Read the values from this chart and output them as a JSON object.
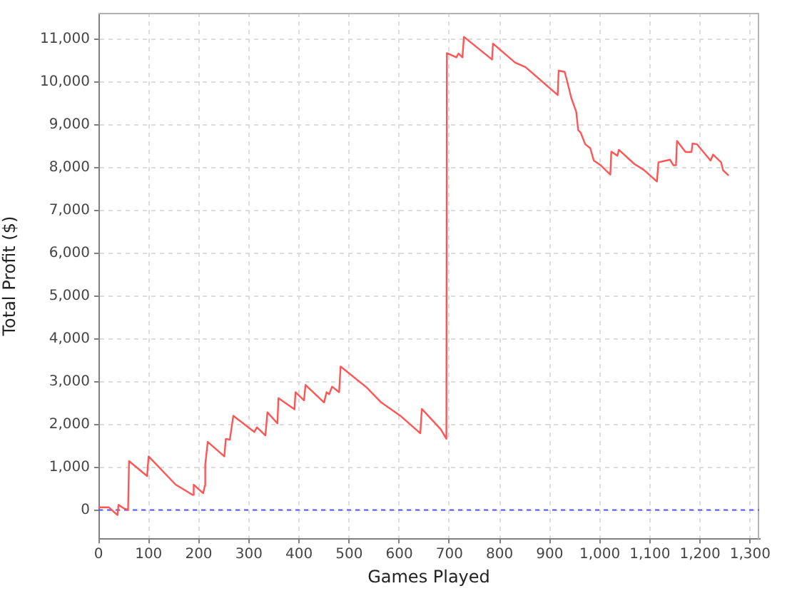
{
  "chart_data": {
    "type": "line",
    "xlabel": "Games Played",
    "ylabel": "Total Profit ($)",
    "xlim": [
      0,
      1318
    ],
    "ylim": [
      -680,
      11610
    ],
    "xticks": [
      0,
      100,
      200,
      300,
      400,
      500,
      600,
      700,
      800,
      900,
      {
        "value": 1000,
        "label": "1,000"
      },
      {
        "value": 1100,
        "label": "1,100"
      },
      {
        "value": 1200,
        "label": "1,200"
      },
      {
        "value": 1300,
        "label": "1,300"
      }
    ],
    "yticks": [
      0,
      {
        "value": 1000,
        "label": "1,000"
      },
      {
        "value": 2000,
        "label": "2,000"
      },
      {
        "value": 3000,
        "label": "3,000"
      },
      {
        "value": 4000,
        "label": "4,000"
      },
      {
        "value": 5000,
        "label": "5,000"
      },
      {
        "value": 6000,
        "label": "6,000"
      },
      {
        "value": 7000,
        "label": "7,000"
      },
      {
        "value": 8000,
        "label": "8,000"
      },
      {
        "value": 9000,
        "label": "9,000"
      },
      {
        "value": 10000,
        "label": "10,000"
      },
      {
        "value": 11000,
        "label": "11,000"
      }
    ],
    "grid": true,
    "legend": false,
    "marker": "none",
    "ref_lines": [
      {
        "axis": "y",
        "value": 0,
        "color": "#5555ff",
        "line_style": "dashed"
      }
    ],
    "series": [
      {
        "color": "#ff5555",
        "x": [
          0,
          21,
          35,
          38,
          40,
          50,
          59,
          61,
          97,
          100,
          154,
          188,
          190,
          209,
          212,
          213,
          218,
          251,
          254,
          262,
          269,
          311,
          316,
          333,
          337,
          357,
          359,
          391,
          393,
          410,
          413,
          450,
          455,
          460,
          466,
          480,
          483,
          535,
          564,
          602,
          642,
          645,
          683,
          694,
          695,
          714,
          718,
          726,
          729,
          785,
          787,
          831,
          852,
          916,
          918,
          930,
          935,
          943,
          953,
          957,
          962,
          971,
          981,
          988,
          1002,
          1021,
          1023,
          1035,
          1038,
          1069,
          1088,
          1114,
          1117,
          1140,
          1147,
          1152,
          1154,
          1171,
          1183,
          1185,
          1194,
          1221,
          1226,
          1242,
          1246,
          1257
        ],
        "values": [
          60,
          60,
          -90,
          -120,
          120,
          40,
          0,
          1140,
          790,
          1250,
          590,
          350,
          590,
          390,
          560,
          1060,
          1590,
          1250,
          1660,
          1640,
          2200,
          1820,
          1930,
          1740,
          2280,
          2020,
          2610,
          2350,
          2750,
          2560,
          2920,
          2510,
          2750,
          2700,
          2880,
          2750,
          3350,
          2860,
          2510,
          2200,
          1790,
          2360,
          1880,
          1660,
          10670,
          10570,
          10660,
          10570,
          11050,
          10520,
          10890,
          10450,
          10340,
          9690,
          10260,
          10230,
          10010,
          9630,
          9300,
          8870,
          8810,
          8540,
          8450,
          8160,
          8050,
          7830,
          8370,
          8270,
          8410,
          8080,
          7940,
          7670,
          8120,
          8180,
          8050,
          8050,
          8620,
          8360,
          8360,
          8560,
          8540,
          8160,
          8300,
          8120,
          7930,
          7810
        ]
      }
    ]
  }
}
